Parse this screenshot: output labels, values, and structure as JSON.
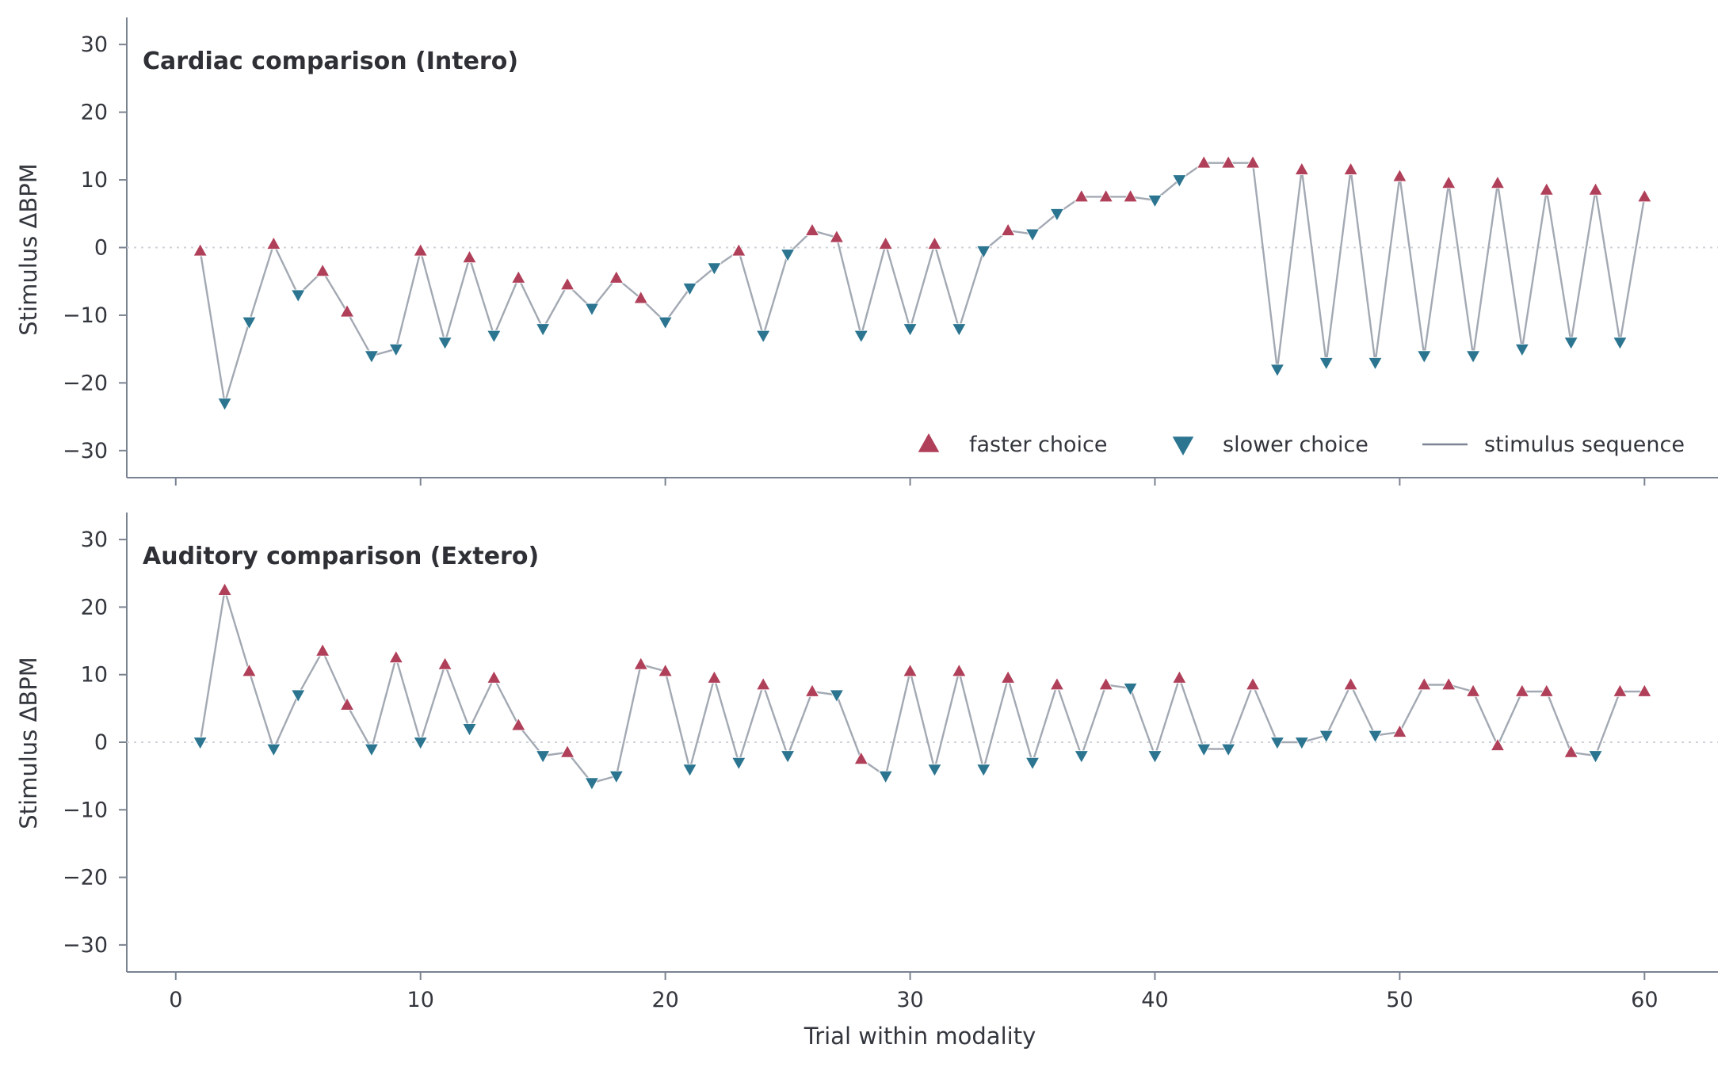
{
  "colors": {
    "faster": "#b0405a",
    "slower": "#2c7590",
    "line": "#a3a9b3",
    "legend_line": "#7b8494"
  },
  "chart_data": {
    "type": "scatter",
    "xlabel": "Trial within modality",
    "ylabel": "Stimulus ΔBPM",
    "xlim": [
      -2,
      63
    ],
    "ylim": [
      -34,
      34
    ],
    "xticks": [
      0,
      10,
      20,
      30,
      40,
      50,
      60
    ],
    "yticks": [
      30,
      20,
      10,
      0,
      -10,
      -20,
      -30
    ],
    "ytick_labels": [
      "30",
      "20",
      "10",
      "0",
      "−10",
      "−20",
      "−30"
    ],
    "grid": false,
    "reference_line_y": 0,
    "legend": {
      "placement": "lower-right of top panel",
      "entries": [
        {
          "key": "faster",
          "label": "faster choice"
        },
        {
          "key": "slower",
          "label": "slower choice"
        },
        {
          "key": "line",
          "label": "stimulus sequence"
        }
      ]
    },
    "panels": [
      {
        "title": "Cardiac comparison (Intero)",
        "x": [
          1,
          2,
          3,
          4,
          5,
          6,
          7,
          8,
          9,
          10,
          11,
          12,
          13,
          14,
          15,
          16,
          17,
          18,
          19,
          20,
          21,
          22,
          23,
          24,
          25,
          26,
          27,
          28,
          29,
          30,
          31,
          32,
          33,
          34,
          35,
          36,
          37,
          38,
          39,
          40,
          41,
          42,
          43,
          44,
          45,
          46,
          47,
          48,
          49,
          50,
          51,
          52,
          53,
          54,
          55,
          56,
          57,
          58,
          59,
          60
        ],
        "y": [
          -0.5,
          -23,
          -11,
          0.5,
          -7,
          -3.5,
          -9.5,
          -16,
          -15,
          -0.5,
          -14,
          -1.5,
          -13,
          -4.5,
          -12,
          -5.5,
          -9,
          -4.5,
          -7.5,
          -11,
          -6,
          -3,
          -0.5,
          -13,
          -1,
          2.5,
          1.5,
          -13,
          0.5,
          -12,
          0.5,
          -12,
          -0.5,
          2.5,
          2,
          5,
          7.5,
          7.5,
          7.5,
          7,
          10,
          12.5,
          12.5,
          12.5,
          -18,
          11.5,
          -17,
          11.5,
          -17,
          10.5,
          -16,
          9.5,
          -16,
          9.5,
          -15,
          8.5,
          -14,
          8.5,
          -14,
          7.5
        ],
        "choice": [
          "F",
          "S",
          "S",
          "F",
          "S",
          "F",
          "F",
          "S",
          "S",
          "F",
          "S",
          "F",
          "S",
          "F",
          "S",
          "F",
          "S",
          "F",
          "F",
          "S",
          "S",
          "S",
          "F",
          "S",
          "S",
          "F",
          "F",
          "S",
          "F",
          "S",
          "F",
          "S",
          "S",
          "F",
          "S",
          "S",
          "F",
          "F",
          "F",
          "S",
          "S",
          "F",
          "F",
          "F",
          "S",
          "F",
          "S",
          "F",
          "S",
          "F",
          "S",
          "F",
          "S",
          "F",
          "S",
          "F",
          "S",
          "F",
          "S",
          "F"
        ]
      },
      {
        "title": "Auditory comparison (Extero)",
        "x": [
          1,
          2,
          3,
          4,
          5,
          6,
          7,
          8,
          9,
          10,
          11,
          12,
          13,
          14,
          15,
          16,
          17,
          18,
          19,
          20,
          21,
          22,
          23,
          24,
          25,
          26,
          27,
          28,
          29,
          30,
          31,
          32,
          33,
          34,
          35,
          36,
          37,
          38,
          39,
          40,
          41,
          42,
          43,
          44,
          45,
          46,
          47,
          48,
          49,
          50,
          51,
          52,
          53,
          54,
          55,
          56,
          57,
          58,
          59,
          60
        ],
        "y": [
          0,
          22.5,
          10.5,
          -1,
          7,
          13.5,
          5.5,
          -1,
          12.5,
          0,
          11.5,
          2,
          9.5,
          2.5,
          -2,
          -1.5,
          -6,
          -5,
          11.5,
          10.5,
          -4,
          9.5,
          -3,
          8.5,
          -2,
          7.5,
          7,
          -2.5,
          -5,
          10.5,
          -4,
          10.5,
          -4,
          9.5,
          -3,
          8.5,
          -2,
          8.5,
          8,
          -2,
          9.5,
          -1,
          -1,
          8.5,
          0,
          0,
          1,
          8.5,
          1,
          1.5,
          8.5,
          8.5,
          7.5,
          -0.5,
          7.5,
          7.5,
          -1.5,
          -2,
          7.5,
          7.5
        ],
        "choice": [
          "S",
          "F",
          "F",
          "S",
          "S",
          "F",
          "F",
          "S",
          "F",
          "S",
          "F",
          "S",
          "F",
          "F",
          "S",
          "F",
          "S",
          "S",
          "F",
          "F",
          "S",
          "F",
          "S",
          "F",
          "S",
          "F",
          "S",
          "F",
          "S",
          "F",
          "S",
          "F",
          "S",
          "F",
          "S",
          "F",
          "S",
          "F",
          "S",
          "S",
          "F",
          "S",
          "S",
          "F",
          "S",
          "S",
          "S",
          "F",
          "S",
          "F",
          "F",
          "F",
          "F",
          "F",
          "F",
          "F",
          "F",
          "S",
          "F",
          "F"
        ]
      }
    ]
  }
}
